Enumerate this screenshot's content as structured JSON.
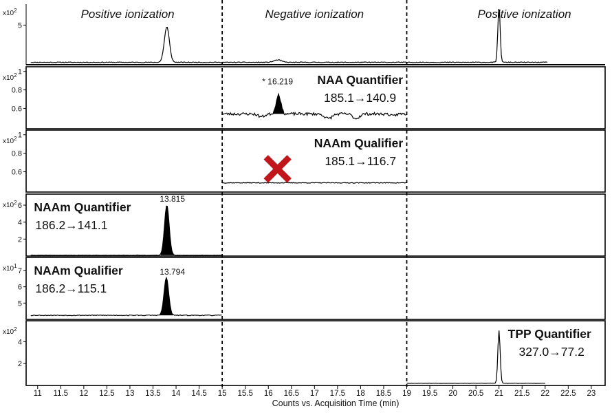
{
  "chart_data": {
    "type": "line",
    "xlabel": "Counts vs. Acquisition Time (min)",
    "xlim": [
      10.75,
      23.3
    ],
    "x_ticks": [
      "11",
      "11.5",
      "12",
      "12.5",
      "13",
      "13.5",
      "14",
      "14.5",
      "15",
      "15.5",
      "16",
      "16.5",
      "17",
      "17.5",
      "18",
      "18.5",
      "19",
      "19.5",
      "20",
      "20.5",
      "21",
      "21.5",
      "22",
      "22.5",
      "23"
    ],
    "segment_boundaries": [
      15,
      19
    ],
    "segments": [
      {
        "label": "Positive ionization",
        "x_center": 12.95
      },
      {
        "label": "Negative ionization",
        "x_center": 17.0
      },
      {
        "label": "Positive ionization",
        "x_center": 21.55
      }
    ],
    "panels": [
      {
        "id": "tic",
        "multiplier_base": "x10",
        "multiplier_exp": "2",
        "ylim": [
          0,
          8.2
        ],
        "ytick_values": [
          5
        ],
        "ytick_labels": [
          "5"
        ],
        "title": "",
        "transition": "",
        "traces": [
          {
            "x_range": [
              10.85,
              22.05
            ],
            "baseline": 0.3,
            "noise": 0.05,
            "seed": 11,
            "peaks": [
              {
                "center": 13.8,
                "height": 4.5,
                "width": 0.055
              },
              {
                "center": 16.2,
                "height": 0.3,
                "width": 0.08
              },
              {
                "center": 21.0,
                "height": 7.2,
                "width": 0.025
              }
            ]
          }
        ],
        "peak_labels": [],
        "marks": []
      },
      {
        "id": "naa-quantifier",
        "multiplier_base": "x10",
        "multiplier_exp": "2",
        "ylim": [
          0.38,
          1.05
        ],
        "ytick_values": [
          1,
          0.8,
          0.6
        ],
        "ytick_labels": [
          "1",
          "0.8",
          "0.6"
        ],
        "title": "NAA Quantifier",
        "title_anchor": "end",
        "title_x": 18.92,
        "transition": "185.1→140.9",
        "traces": [
          {
            "x_range": [
              15.0,
              19.0
            ],
            "baseline": 0.54,
            "noise": 0.015,
            "seed": 23,
            "filled_peak": true,
            "dips": [
              {
                "center": 17.3,
                "depth": 0.05,
                "width": 0.08
              },
              {
                "center": 17.9,
                "depth": 0.05,
                "width": 0.07
              },
              {
                "center": 15.85,
                "depth": 0.03,
                "width": 0.07
              },
              {
                "center": 18.7,
                "depth": 0.025,
                "width": 0.05
              }
            ],
            "peaks": [
              {
                "center": 16.22,
                "height": 0.21,
                "width": 0.05
              }
            ]
          }
        ],
        "peak_labels": [
          {
            "text": "* 16.219",
            "x": 16.2,
            "y": 0.86
          }
        ],
        "marks": []
      },
      {
        "id": "naam-qualifier-negative",
        "multiplier_base": "x10",
        "multiplier_exp": "2",
        "ylim": [
          0.38,
          1.05
        ],
        "ytick_values": [
          1,
          0.8,
          0.6
        ],
        "ytick_labels": [
          "1",
          "0.8",
          "0.6"
        ],
        "title": "NAAm Qualifier",
        "title_anchor": "end",
        "title_x": 18.92,
        "transition": "185.1→116.7",
        "traces": [
          {
            "x_range": [
              15.0,
              19.0
            ],
            "baseline": 0.48,
            "noise": 0.004,
            "seed": 37,
            "peaks": []
          }
        ],
        "peak_labels": [],
        "marks": [
          {
            "type": "cross",
            "x": 16.2,
            "y": 0.63,
            "color": "#c0161c"
          }
        ]
      },
      {
        "id": "naam-quantifier",
        "multiplier_base": "x10",
        "multiplier_exp": "2",
        "ylim": [
          0,
          7.3
        ],
        "ytick_values": [
          6,
          4,
          2
        ],
        "ytick_labels": [
          "6",
          "4",
          "2"
        ],
        "title": "NAAm Quantifier",
        "title_anchor": "start",
        "title_x": 10.92,
        "transition": "186.2→141.1",
        "traces": [
          {
            "x_range": [
              10.85,
              15.0
            ],
            "baseline": 0.1,
            "noise": 0.02,
            "seed": 41,
            "filled_peak": true,
            "peaks": [
              {
                "center": 13.8,
                "height": 5.9,
                "width": 0.05
              }
            ]
          }
        ],
        "peak_labels": [
          {
            "text": "13.815",
            "x": 13.92,
            "y": 6.4
          }
        ],
        "marks": []
      },
      {
        "id": "naam-qualifier-positive",
        "multiplier_base": "x10",
        "multiplier_exp": "1",
        "ylim": [
          4.0,
          7.8
        ],
        "ytick_values": [
          7,
          6,
          5
        ],
        "ytick_labels": [
          "7",
          "6",
          "5"
        ],
        "title": "NAAm Qualifier",
        "title_anchor": "start",
        "title_x": 10.92,
        "transition": "186.2→115.1",
        "traces": [
          {
            "x_range": [
              10.85,
              15.0
            ],
            "baseline": 4.25,
            "noise": 0.025,
            "seed": 53,
            "filled_peak": true,
            "peaks": [
              {
                "center": 13.79,
                "height": 2.3,
                "width": 0.05
              }
            ]
          }
        ],
        "peak_labels": [
          {
            "text": "13.794",
            "x": 13.92,
            "y": 6.75
          }
        ],
        "marks": []
      },
      {
        "id": "tpp-quantifier",
        "multiplier_base": "x10",
        "multiplier_exp": "2",
        "ylim": [
          0,
          5.9
        ],
        "ytick_values": [
          4,
          2
        ],
        "ytick_labels": [
          "4",
          "2"
        ],
        "title": "TPP Quantifier",
        "title_anchor": "end",
        "title_x": 23.0,
        "transition": "327.0→77.2",
        "traces": [
          {
            "x_range": [
              19.0,
              22.0
            ],
            "baseline": 0.2,
            "noise": 0.015,
            "seed": 67,
            "peaks": [
              {
                "center": 21.0,
                "height": 4.8,
                "width": 0.025
              }
            ]
          }
        ],
        "peak_labels": [],
        "marks": []
      }
    ]
  }
}
